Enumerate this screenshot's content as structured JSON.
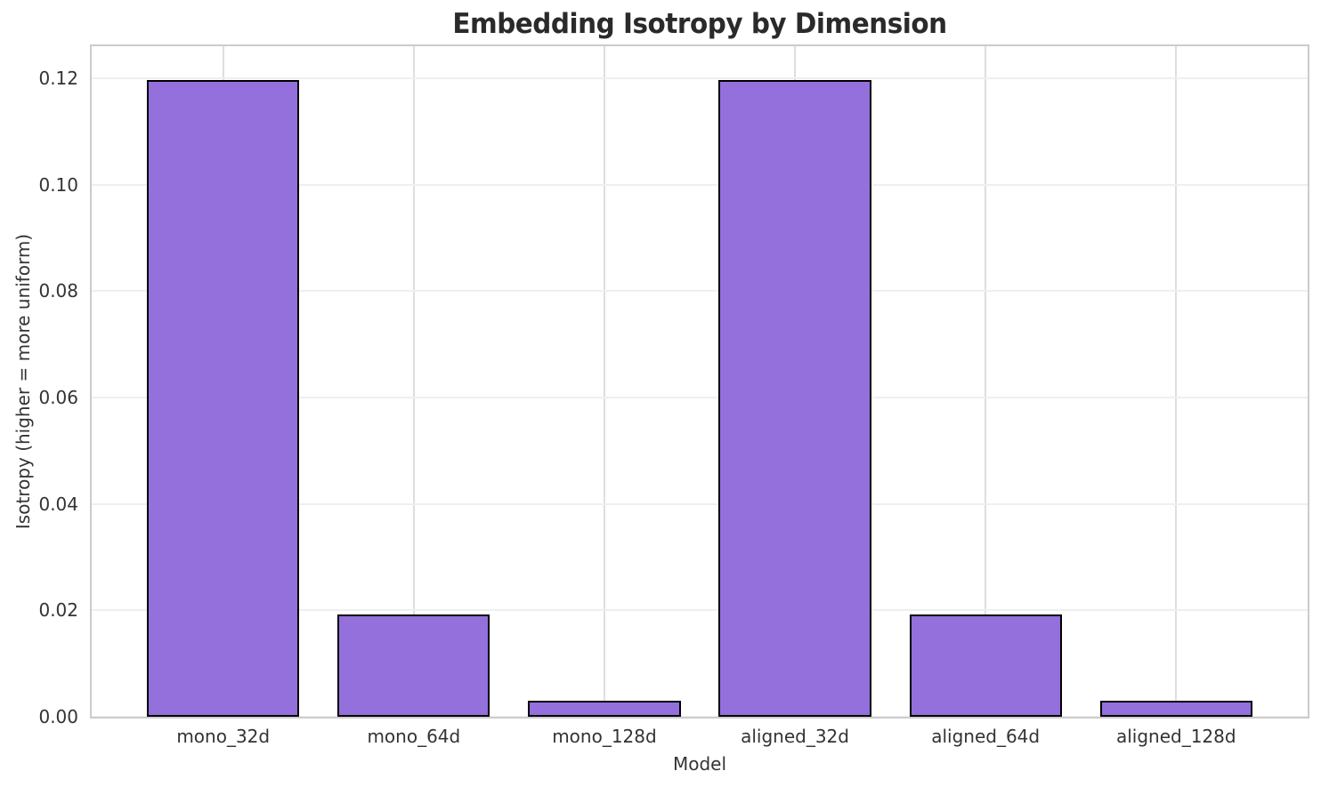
{
  "chart_data": {
    "type": "bar",
    "title": "Embedding Isotropy by Dimension",
    "xlabel": "Model",
    "ylabel": "Isotropy (higher = more uniform)",
    "categories": [
      "mono_32d",
      "mono_64d",
      "mono_128d",
      "aligned_32d",
      "aligned_64d",
      "aligned_128d"
    ],
    "values": [
      0.1197,
      0.0193,
      0.003,
      0.1197,
      0.0193,
      0.003
    ],
    "ylim": [
      0,
      0.126
    ],
    "yticks": [
      0.0,
      0.02,
      0.04,
      0.06,
      0.08,
      0.1,
      0.12
    ],
    "ytick_labels": [
      "0.00",
      "0.02",
      "0.04",
      "0.06",
      "0.08",
      "0.10",
      "0.12"
    ],
    "grid": true,
    "legend": null,
    "colors": {
      "bar_fill": "#9370DB",
      "bar_edge": "#000000",
      "grid_horizontal": "#efefef",
      "grid_vertical": "#dedede",
      "spine": "#cccccc",
      "text": "#333333",
      "title_text": "#2a2a2a",
      "background": "#ffffff"
    }
  }
}
